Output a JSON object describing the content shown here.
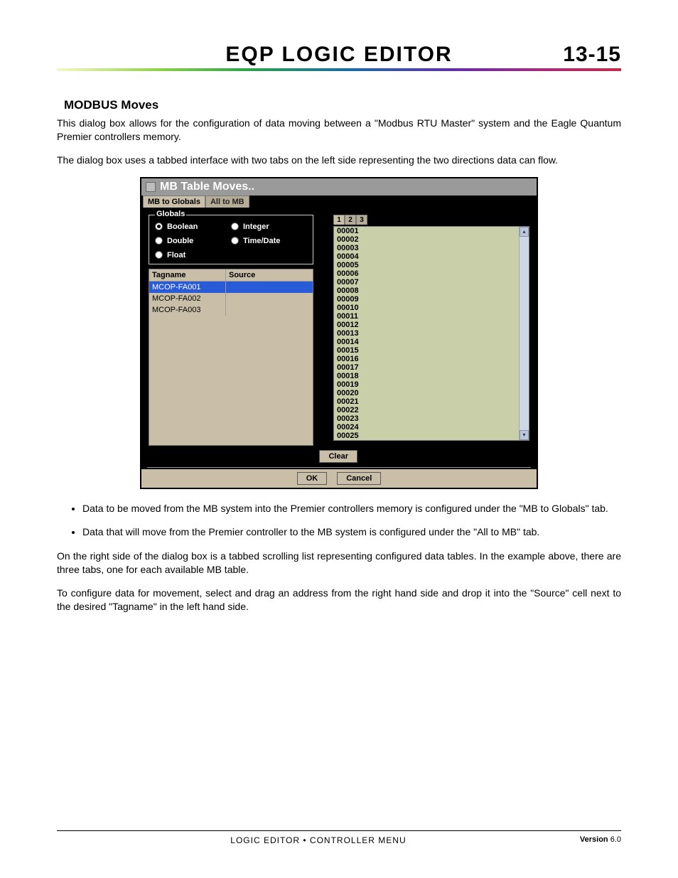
{
  "header": {
    "title": "Eqp Logic Editor",
    "page_number": "13-15",
    "rule_gradient": [
      "#f7f7c7",
      "#8fd24a",
      "#2aa24a",
      "#1a6aa8",
      "#6a2aa8",
      "#a82a7a",
      "#c32a48"
    ]
  },
  "section": {
    "heading": "MODBUS Moves",
    "para1": "This dialog box allows for the configuration of data moving between a \"Modbus RTU Master\" system and the Eagle Quantum Premier controllers memory.",
    "para2": "The dialog box uses a tabbed interface with two tabs on the left side representing the two directions data can flow."
  },
  "dialog": {
    "title": "MB Table Moves..",
    "main_tabs": {
      "active": "MB to Globals",
      "inactive": "All to MB"
    },
    "globals_legend": "Globals",
    "radios": {
      "boolean": "Boolean",
      "integer": "Integer",
      "double": "Double",
      "timedate": "Time/Date",
      "float": "Float",
      "selected": "boolean"
    },
    "tag_table": {
      "head_tag": "Tagname",
      "head_src": "Source",
      "rows": [
        {
          "tag": "MCOP-FA001",
          "src": ""
        },
        {
          "tag": "MCOP-FA002",
          "src": ""
        },
        {
          "tag": "MCOP-FA003",
          "src": ""
        }
      ],
      "selected_index": 0
    },
    "num_tabs": [
      "1",
      "2",
      "3"
    ],
    "num_tab_active": 0,
    "addresses": [
      "00001",
      "00002",
      "00003",
      "00004",
      "00005",
      "00006",
      "00007",
      "00008",
      "00009",
      "00010",
      "00011",
      "00012",
      "00013",
      "00014",
      "00015",
      "00016",
      "00017",
      "00018",
      "00019",
      "00020",
      "00021",
      "00022",
      "00023",
      "00024",
      "00025"
    ],
    "buttons": {
      "clear": "Clear",
      "ok": "OK",
      "cancel": "Cancel"
    },
    "colors": {
      "window_bg": "#000000",
      "panel_bg": "#c9bfa9",
      "list_bg": "#c9cfa9",
      "selection": "#2a5bd7",
      "titlebar": "#9a9a9a"
    }
  },
  "bullets": {
    "b1": "Data to be moved from the MB system into the Premier controllers memory is configured under the \"MB to Globals\" tab.",
    "b2": "Data that will move from the Premier controller to the MB system is configured under the \"All to MB\" tab."
  },
  "after": {
    "p1": "On the right side of the dialog box is a tabbed scrolling list representing configured data tables.  In the example above, there are three tabs, one for each available MB table.",
    "p2": "To configure data for movement, select and drag an address from the right hand side and drop it into the \"Source\" cell next to the desired \"Tagname\" in the left hand side."
  },
  "footer": {
    "center": "LOGIC EDITOR • CONTROLLER MENU",
    "version_label": "Version",
    "version_value": "6.0"
  }
}
